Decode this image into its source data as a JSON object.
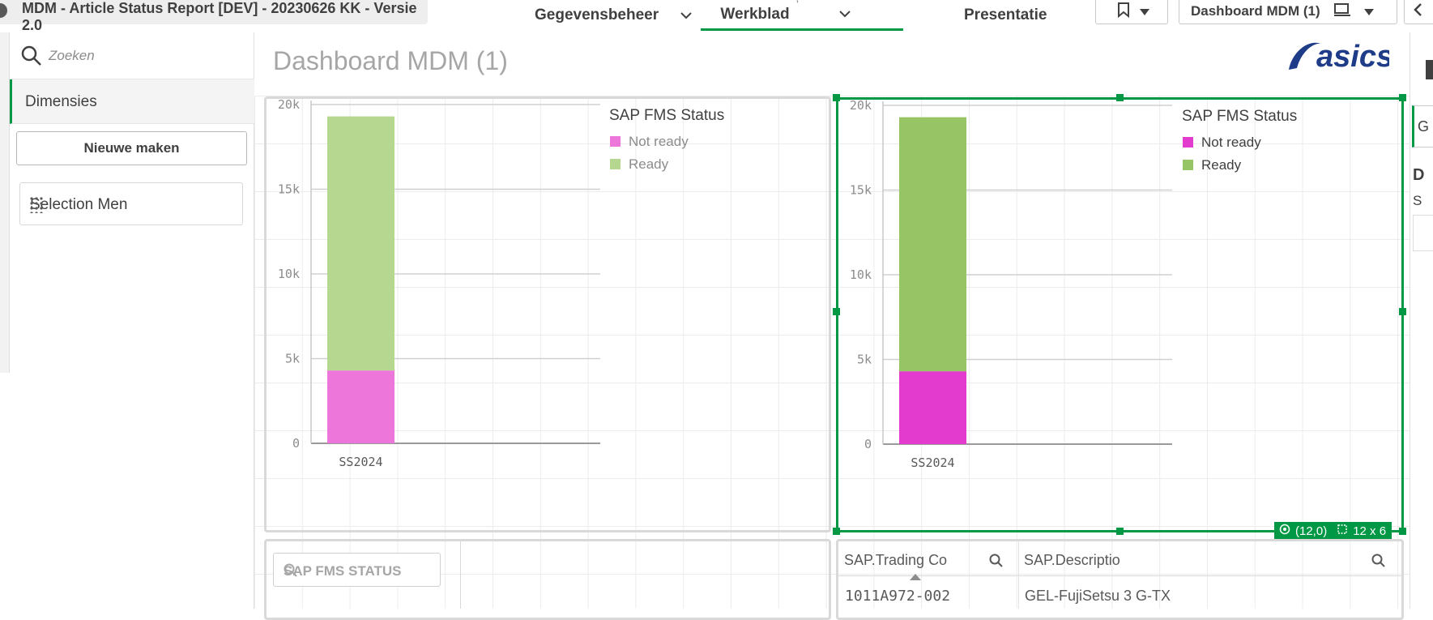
{
  "app": {
    "title": "MDM - Article Status Report [DEV] - 20230626 KK - Versie 2.0"
  },
  "nav": {
    "tabs": [
      {
        "label": "Gegevensbeheer"
      },
      {
        "label": "Werkblad"
      },
      {
        "label": "Presentatie"
      }
    ],
    "sheet_selector": "Dashboard MDM (1)"
  },
  "assets": {
    "search_placeholder": "Zoeken",
    "section": "Dimensies",
    "new_button": "Nieuwe maken",
    "items": [
      "Selection Men"
    ]
  },
  "sheet": {
    "title": "Dashboard MDM (1)",
    "logo_text": "asics",
    "selection_info": {
      "position": "(12,0)",
      "size": "12 x 6"
    }
  },
  "colors": {
    "accent": "#009845",
    "chart1_not_ready": "#ec76da",
    "chart1_ready": "#b5d78f",
    "chart2_not_ready": "#e33bce",
    "chart2_ready": "#97c465"
  },
  "chart_data": [
    {
      "type": "bar",
      "stacked": true,
      "categories": [
        "SS2024"
      ],
      "series": [
        {
          "name": "Not ready",
          "values": [
            4300
          ]
        },
        {
          "name": "Ready",
          "values": [
            15000
          ]
        }
      ],
      "legend_title": "SAP FMS Status",
      "legend_placement": "top-right",
      "yticks": [
        "0",
        "5k",
        "10k",
        "15k",
        "20k"
      ],
      "ylim": [
        0,
        20000
      ]
    },
    {
      "type": "bar",
      "stacked": true,
      "categories": [
        "SS2024"
      ],
      "series": [
        {
          "name": "Not ready",
          "values": [
            4300
          ]
        },
        {
          "name": "Ready",
          "values": [
            15000
          ]
        }
      ],
      "legend_title": "SAP FMS Status",
      "legend_placement": "top-right",
      "yticks": [
        "0",
        "5k",
        "10k",
        "15k",
        "20k"
      ],
      "ylim": [
        0,
        20000
      ]
    }
  ],
  "filter_pane": {
    "label": "SAP FMS STATUS"
  },
  "table": {
    "columns": [
      "SAP.Trading Co",
      "SAP.Descriptio"
    ],
    "rows": [
      [
        "1011A972-002",
        "GEL-FujiSetsu 3 G-TX"
      ]
    ]
  },
  "right_panel": {
    "tab_letter": "G",
    "heading_letter": "D",
    "sub_letter": "S"
  }
}
